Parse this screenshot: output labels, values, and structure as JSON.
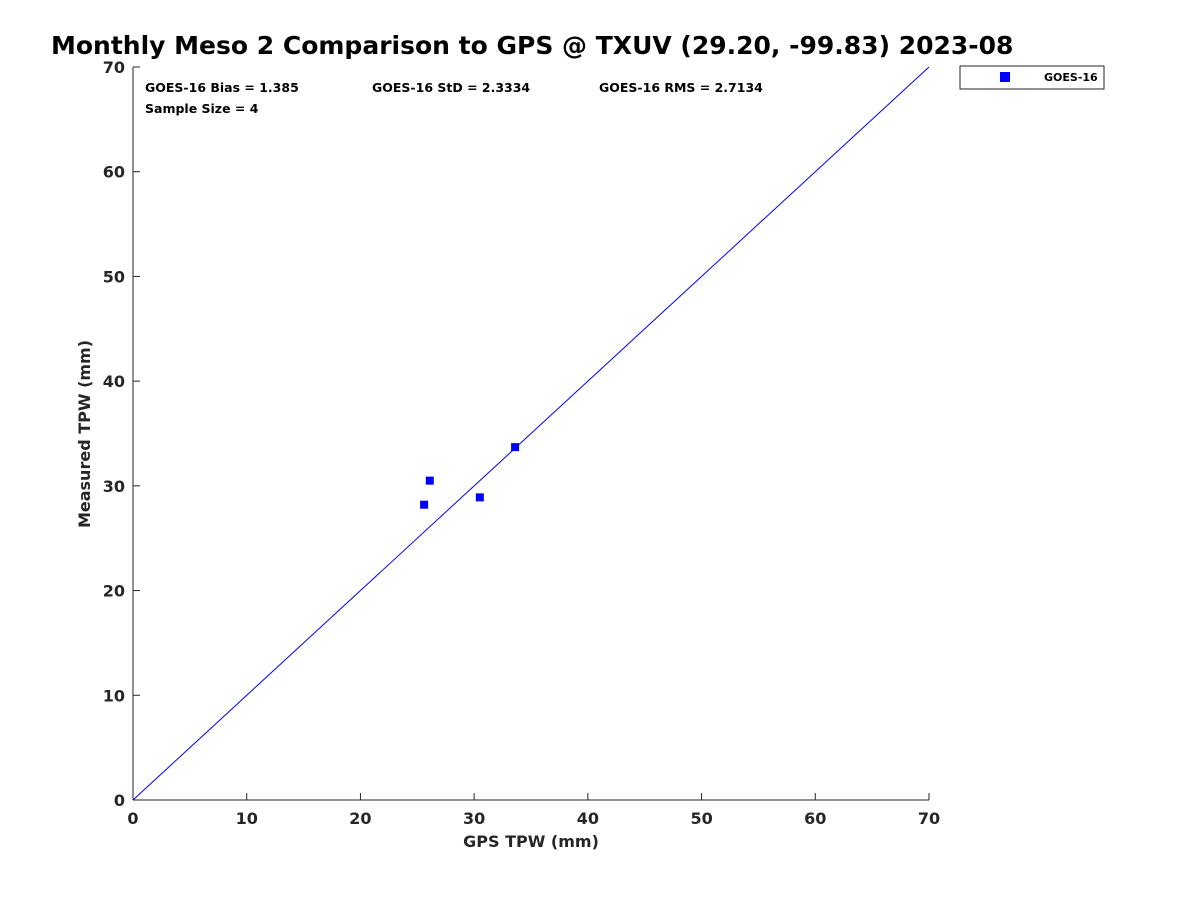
{
  "chart_data": {
    "type": "scatter",
    "title": "Monthly Meso 2 Comparison to GPS @ TXUV (29.20, -99.83) 2023-08",
    "xlabel": "GPS TPW (mm)",
    "ylabel": "Measured TPW (mm)",
    "xlim": [
      0,
      70
    ],
    "ylim": [
      0,
      70
    ],
    "xticks": [
      "0",
      "10",
      "20",
      "30",
      "40",
      "50",
      "60",
      "70"
    ],
    "yticks": [
      "0",
      "10",
      "20",
      "30",
      "40",
      "50",
      "60",
      "70"
    ],
    "grid": false,
    "legend_position": "top-right outside",
    "series": [
      {
        "name": "GOES-16",
        "color": "#0000ff",
        "marker": "square",
        "points": [
          {
            "x": 25.6,
            "y": 28.2
          },
          {
            "x": 26.1,
            "y": 30.5
          },
          {
            "x": 30.5,
            "y": 28.9
          },
          {
            "x": 33.6,
            "y": 33.7
          }
        ]
      }
    ],
    "reference_line": {
      "from": [
        0,
        0
      ],
      "to": [
        70,
        70
      ],
      "color": "#0000ff"
    },
    "stats": {
      "bias": "GOES-16 Bias = 1.385",
      "std": "GOES-16 StD = 2.3334",
      "rms": "GOES-16 RMS = 2.7134",
      "sample_size": "Sample Size = 4"
    }
  }
}
